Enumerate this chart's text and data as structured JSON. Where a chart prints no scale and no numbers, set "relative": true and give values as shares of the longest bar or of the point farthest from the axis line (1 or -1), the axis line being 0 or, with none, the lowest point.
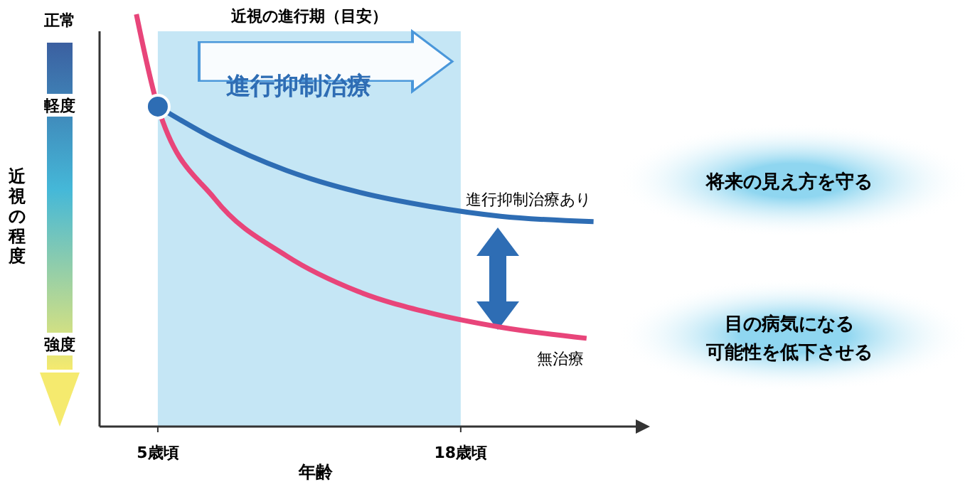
{
  "chart_data": {
    "type": "line",
    "relative": true,
    "xlabel": "年齢",
    "ylabel": "近視の程度",
    "xlim": [
      2.5,
      26
    ],
    "xticks": [
      {
        "value": 5,
        "label": "5歳頃"
      },
      {
        "value": 18,
        "label": "18歳頃"
      }
    ],
    "tick_labels": "x",
    "grid": false,
    "legend": false,
    "line_style": "solid",
    "marker": "none",
    "bands": [
      {
        "axis": "x",
        "from": 5,
        "to": 18,
        "label": "近視の進行期（目安）",
        "color": "#c5e6f5"
      }
    ],
    "series": [
      {
        "name": "進行抑制治療あり",
        "color": "#2e6db4",
        "x": [
          5,
          7.45,
          10.52,
          13.58,
          16.65,
          19.71,
          23.7
        ],
        "values": [
          0.776,
          0.697,
          0.621,
          0.569,
          0.534,
          0.51,
          0.497
        ]
      },
      {
        "name": "無治療",
        "color": "#e8457a",
        "x": [
          4.08,
          5,
          7.45,
          10.52,
          13.58,
          16.65,
          19.71,
          23.4
        ],
        "values": [
          1,
          0.776,
          0.552,
          0.414,
          0.328,
          0.276,
          0.241,
          0.214
        ]
      },
      {
        "type": "scatter",
        "color": "#2e6db4",
        "marker": "circle",
        "x": [
          5
        ],
        "values": [
          0.776
        ]
      }
    ],
    "annotations": [
      "進行抑制治療",
      "正常",
      "軽度",
      "強度",
      "将来の見え方を守る",
      "目の病気になる",
      "可能性を低下させる"
    ]
  }
}
